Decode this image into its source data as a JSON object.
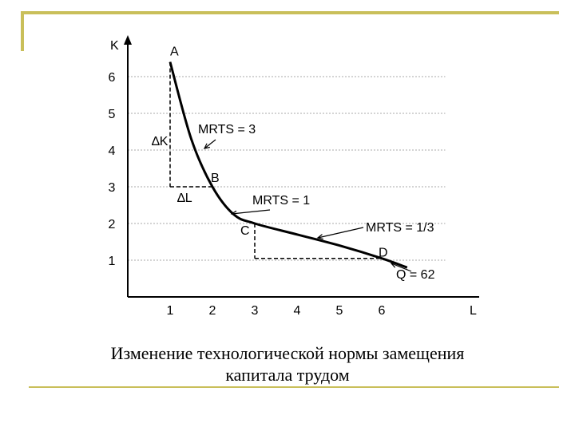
{
  "caption": {
    "line1": "Изменение технологической нормы замещения",
    "line2": "капитала трудом"
  },
  "chart_data": {
    "type": "line",
    "xlabel": "L",
    "ylabel": "K",
    "xlim": [
      0,
      7.5
    ],
    "ylim": [
      0,
      6.5
    ],
    "x_ticks": [
      "1",
      "2",
      "3",
      "4",
      "5",
      "6"
    ],
    "y_ticks": [
      "1",
      "2",
      "3",
      "4",
      "5",
      "6"
    ],
    "grid": true,
    "series": [
      {
        "name": "Q = 62",
        "points": [
          [
            1,
            6.4
          ],
          [
            1.5,
            4.3
          ],
          [
            2,
            3.0
          ],
          [
            2.5,
            2.25
          ],
          [
            3,
            2.0
          ],
          [
            4,
            1.7
          ],
          [
            5,
            1.4
          ],
          [
            6,
            1.05
          ],
          [
            6.6,
            0.8
          ]
        ]
      }
    ],
    "points_labeled": [
      {
        "label": "A",
        "x": 1,
        "y": 6.4
      },
      {
        "label": "B",
        "x": 2,
        "y": 3.0
      },
      {
        "label": "C",
        "x": 3,
        "y": 2.0
      },
      {
        "label": "D",
        "x": 6,
        "y": 1.05
      }
    ],
    "annotations": {
      "dK": "∆K",
      "dL": "∆L",
      "mrts1": "MRTS = 3",
      "mrts2": "MRTS = 1",
      "mrts3": "MRTS = 1/3",
      "curve_label": "Q = 62"
    }
  }
}
